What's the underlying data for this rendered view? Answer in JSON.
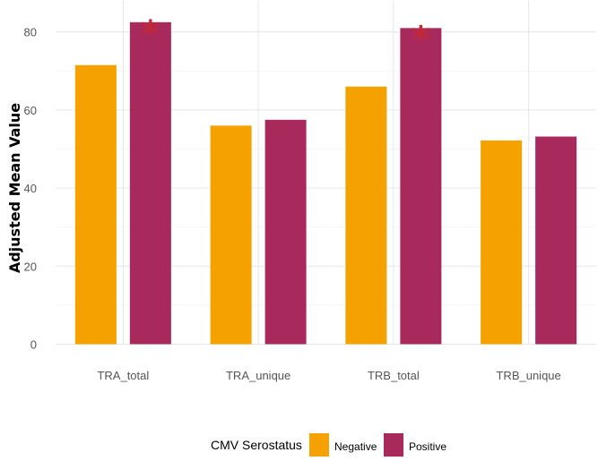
{
  "chart_data": {
    "type": "bar",
    "categories": [
      "TRA_total",
      "TRA_unique",
      "TRB_total",
      "TRB_unique"
    ],
    "series": [
      {
        "name": "Negative",
        "color": "#f5a100",
        "values": [
          71.5,
          56,
          66,
          52.2
        ]
      },
      {
        "name": "Positive",
        "color": "#a82a5c",
        "values": [
          82.5,
          57.5,
          81,
          53.2
        ]
      }
    ],
    "significance": [
      {
        "category": "TRA_total",
        "series": "Positive",
        "label": "*"
      },
      {
        "category": "TRB_total",
        "series": "Positive",
        "label": "*"
      }
    ],
    "title": "",
    "xlabel": "",
    "ylabel": "Adjusted Mean Value",
    "ylim": [
      0,
      88
    ],
    "yticks": [
      0,
      20,
      40,
      60,
      80
    ],
    "grid": true,
    "legend": {
      "title": "CMV Serostatus",
      "placement": "bottom",
      "entries": [
        "Negative",
        "Positive"
      ]
    }
  }
}
